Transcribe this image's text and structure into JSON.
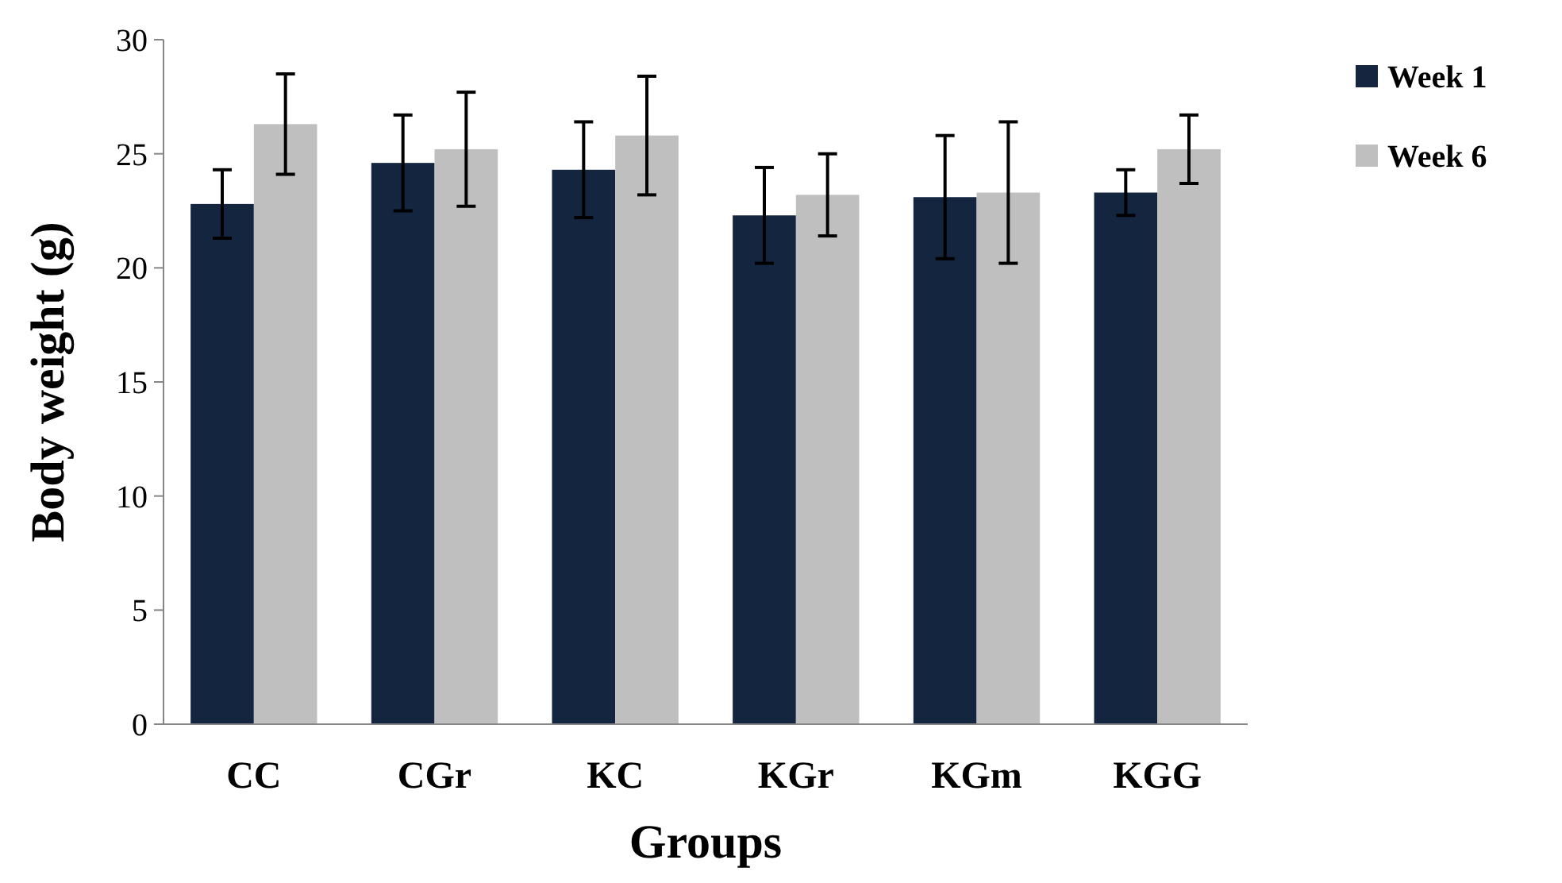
{
  "chart_data": {
    "type": "bar",
    "xlabel": "Groups",
    "ylabel": "Body weight (g)",
    "categories": [
      "CC",
      "CGr",
      "KC",
      "KGr",
      "KGm",
      "KGG"
    ],
    "series": [
      {
        "name": "Week 1",
        "color": "#14253f",
        "values": [
          22.8,
          24.6,
          24.3,
          22.3,
          23.1,
          23.3
        ],
        "errors": [
          1.5,
          2.1,
          2.1,
          2.1,
          2.7,
          1.0
        ]
      },
      {
        "name": "Week 6",
        "color": "#bfbfbf",
        "values": [
          26.3,
          25.2,
          25.8,
          23.2,
          23.3,
          25.2
        ],
        "errors": [
          2.2,
          2.5,
          2.6,
          1.8,
          3.1,
          1.5
        ]
      }
    ],
    "ylim": [
      0,
      30
    ],
    "yticks": [
      0,
      5,
      10,
      15,
      20,
      25,
      30
    ],
    "grid": false,
    "legend": "right"
  }
}
